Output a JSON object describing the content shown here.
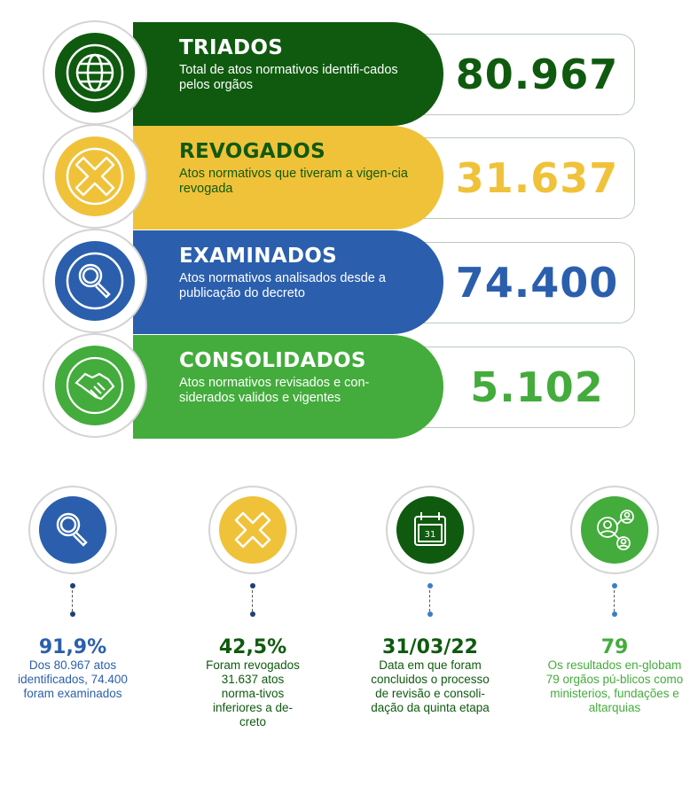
{
  "colors": {
    "dark_green": "#0f5a0f",
    "yellow": "#f0c23a",
    "blue": "#2b5fad",
    "green": "#43ac3c"
  },
  "rows": [
    {
      "title": "TRIADOS",
      "desc": "Total de atos normativos identifi-cados pelos orgãos",
      "value": "80.967",
      "icon": "globe-icon"
    },
    {
      "title": "REVOGADOS",
      "desc": "Atos normativos que tiveram a vigen-cia revogada",
      "value": "31.637",
      "icon": "x-icon"
    },
    {
      "title": "EXAMINADOS",
      "desc": "Atos normativos analisados desde a publicação do decreto",
      "value": "74.400",
      "icon": "magnifier-icon"
    },
    {
      "title": "CONSOLIDADOS",
      "desc": "Atos normativos revisados e con-siderados validos e vigentes",
      "value": "5.102",
      "icon": "handshake-icon"
    }
  ],
  "stats": [
    {
      "value": "91,9%",
      "desc": "Dos 80.967 atos identificados, 74.400 foram examinados",
      "icon": "magnifier-icon"
    },
    {
      "value": "42,5%",
      "desc": "Foram revogados 31.637 atos norma-tivos inferiores a de-creto",
      "icon": "x-icon"
    },
    {
      "value": "31/03/22",
      "desc": "Data em que foram concluidos o processo de revisão e consoli-dação da quinta etapa",
      "icon": "calendar-icon",
      "calendar_day": "31"
    },
    {
      "value": "79",
      "desc": "Os resultados en-globam 79 orgãos pú-blicos como ministerios, fundações e altarquias",
      "icon": "network-people-icon"
    }
  ]
}
